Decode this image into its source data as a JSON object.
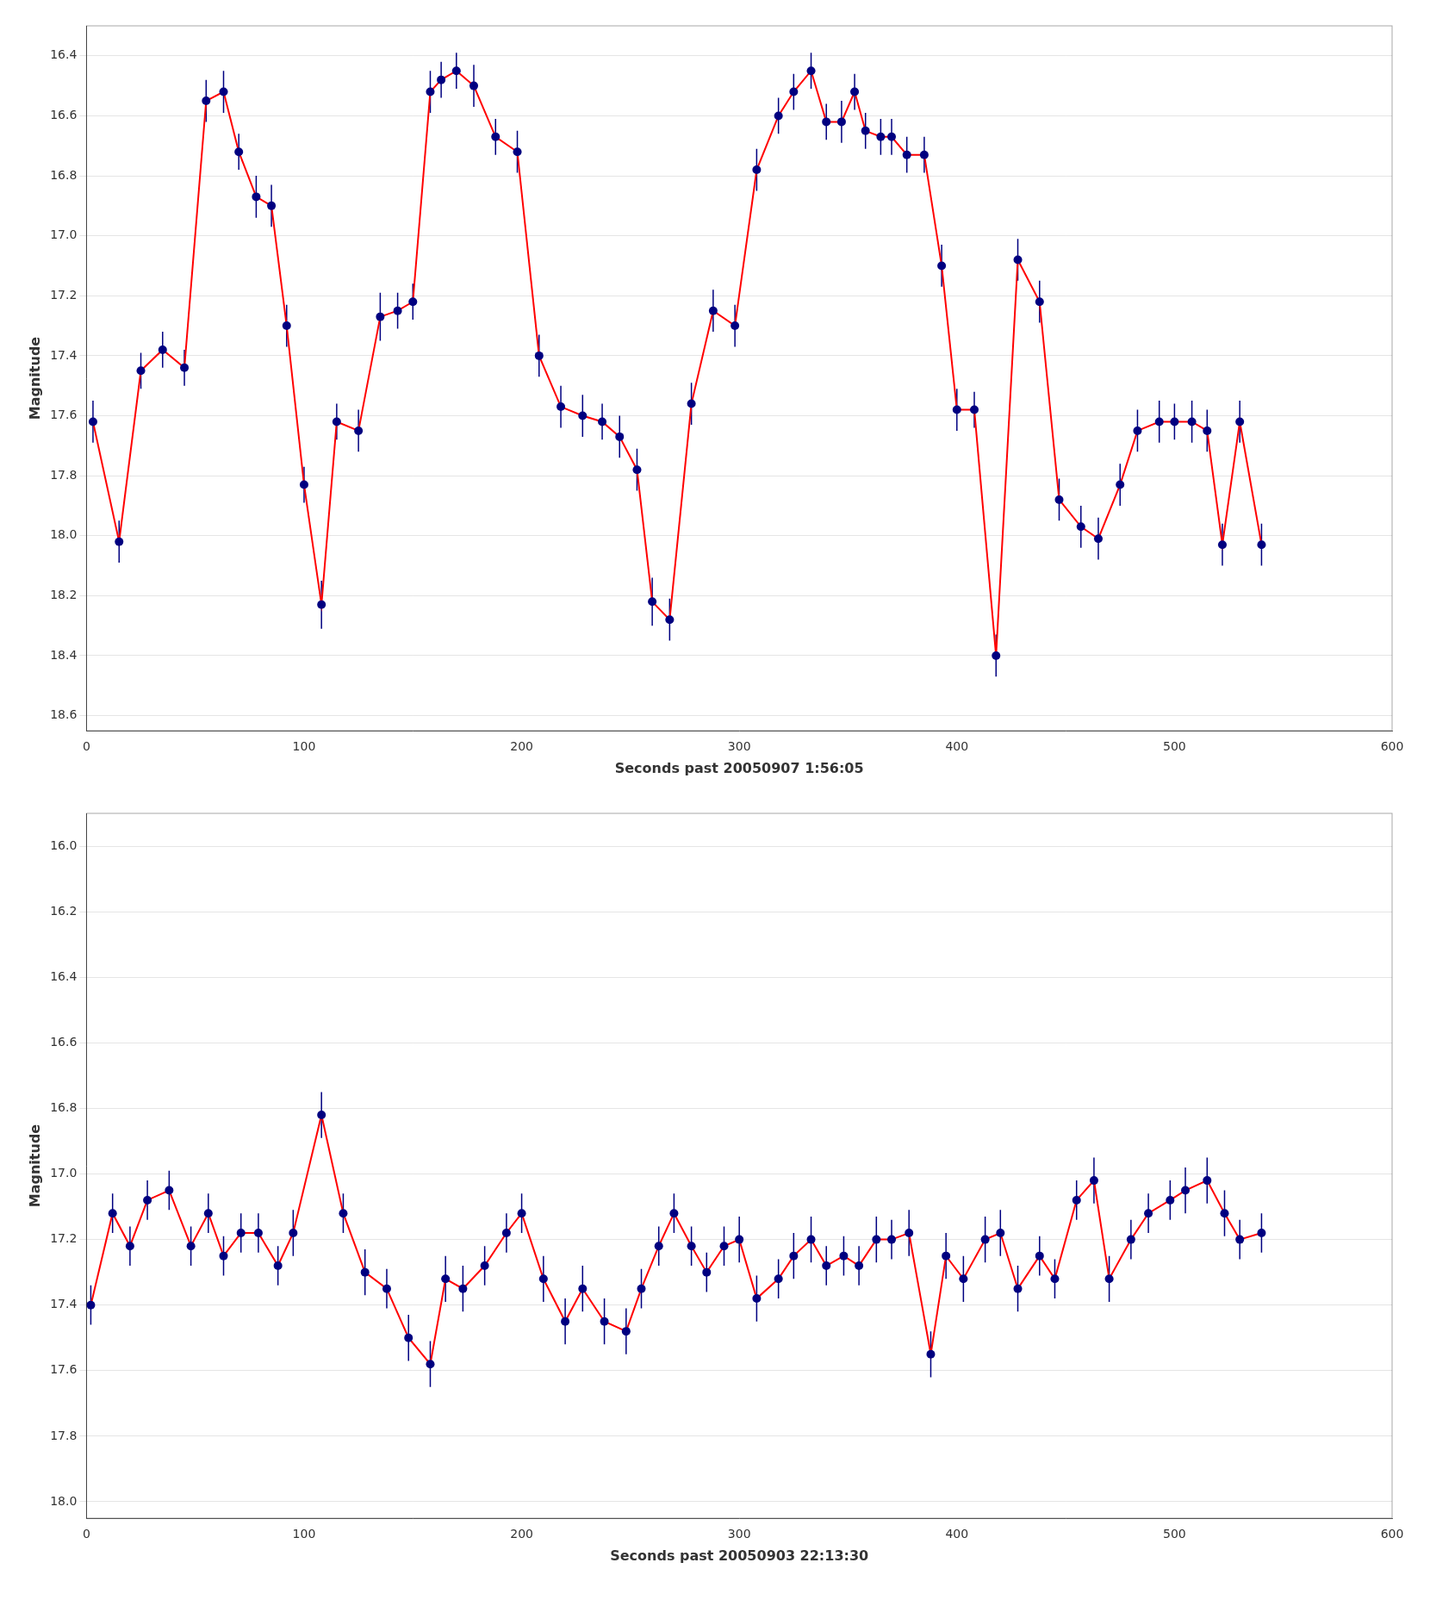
{
  "chart_data": [
    {
      "type": "scatter",
      "xlabel": "Seconds past 20050907 1:56:05",
      "ylabel": "Magnitude",
      "xlim": [
        0,
        600
      ],
      "xticks": [
        0,
        100,
        200,
        300,
        400,
        500,
        600
      ],
      "ylim": [
        18.65,
        16.3
      ],
      "yticks": [
        16.4,
        16.6,
        16.8,
        {
          "value": 17,
          "label": "17.0"
        },
        17.2,
        17.4,
        17.6,
        17.8,
        {
          "value": 18,
          "label": "18.0"
        },
        18.2,
        18.4,
        18.6
      ],
      "grid": "y",
      "x": [
        3,
        15,
        25,
        35,
        45,
        55,
        63,
        70,
        78,
        85,
        92,
        100,
        108,
        115,
        125,
        135,
        143,
        150,
        158,
        163,
        170,
        178,
        188,
        198,
        208,
        218,
        228,
        237,
        245,
        253,
        260,
        268,
        278,
        288,
        298,
        308,
        318,
        325,
        333,
        340,
        347,
        353,
        358,
        365,
        370,
        377,
        385,
        393,
        400,
        408,
        418,
        428,
        438,
        447,
        457,
        465,
        475,
        483,
        493,
        500,
        508,
        515,
        522,
        530,
        540
      ],
      "series": [
        {
          "type": "line",
          "color": "#FF0000",
          "marker": "none",
          "values": [
            17.62,
            18.02,
            17.45,
            17.38,
            17.44,
            16.55,
            16.52,
            16.72,
            16.87,
            16.9,
            17.3,
            17.83,
            18.23,
            17.62,
            17.65,
            17.27,
            17.25,
            17.22,
            16.52,
            16.48,
            16.45,
            16.5,
            16.67,
            16.72,
            17.4,
            17.57,
            17.6,
            17.62,
            17.67,
            17.78,
            18.22,
            18.28,
            17.56,
            17.25,
            17.3,
            16.78,
            16.6,
            16.52,
            16.45,
            16.62,
            16.62,
            16.52,
            16.65,
            16.67,
            16.67,
            16.73,
            16.73,
            17.1,
            17.58,
            17.58,
            18.4,
            17.08,
            17.22,
            17.88,
            17.97,
            18.01,
            17.83,
            17.65,
            17.62,
            17.62,
            17.62,
            17.65,
            18.03,
            17.62,
            18.03
          ]
        },
        {
          "type": "scatter",
          "color": "#000080",
          "marker": "circle",
          "values": [
            17.62,
            18.02,
            17.45,
            17.38,
            17.44,
            16.55,
            16.52,
            16.72,
            16.87,
            16.9,
            17.3,
            17.83,
            18.23,
            17.62,
            17.65,
            17.27,
            17.25,
            17.22,
            16.52,
            16.48,
            16.45,
            16.5,
            16.67,
            16.72,
            17.4,
            17.57,
            17.6,
            17.62,
            17.67,
            17.78,
            18.22,
            18.28,
            17.56,
            17.25,
            17.3,
            16.78,
            16.6,
            16.52,
            16.45,
            16.62,
            16.62,
            16.52,
            16.65,
            16.67,
            16.67,
            16.73,
            16.73,
            17.1,
            17.58,
            17.58,
            18.4,
            17.08,
            17.22,
            17.88,
            17.97,
            18.01,
            17.83,
            17.65,
            17.62,
            17.62,
            17.62,
            17.65,
            18.03,
            17.62,
            18.03
          ],
          "yerr": [
            0.07,
            0.07,
            0.06,
            0.06,
            0.06,
            0.07,
            0.07,
            0.06,
            0.07,
            0.07,
            0.07,
            0.06,
            0.08,
            0.06,
            0.07,
            0.08,
            0.06,
            0.06,
            0.07,
            0.06,
            0.06,
            0.07,
            0.06,
            0.07,
            0.07,
            0.07,
            0.07,
            0.06,
            0.07,
            0.07,
            0.08,
            0.07,
            0.07,
            0.07,
            0.07,
            0.07,
            0.06,
            0.06,
            0.06,
            0.06,
            0.07,
            0.06,
            0.06,
            0.06,
            0.06,
            0.06,
            0.06,
            0.07,
            0.07,
            0.06,
            0.07,
            0.07,
            0.07,
            0.07,
            0.07,
            0.07,
            0.07,
            0.07,
            0.07,
            0.06,
            0.07,
            0.07,
            0.07,
            0.07,
            0.07
          ]
        }
      ]
    },
    {
      "type": "scatter",
      "xlabel": "Seconds past 20050903 22:13:30",
      "ylabel": "Magnitude",
      "xlim": [
        0,
        600
      ],
      "xticks": [
        0,
        100,
        200,
        300,
        400,
        500,
        600
      ],
      "ylim": [
        18.05,
        15.9
      ],
      "yticks": [
        {
          "value": 16,
          "label": "16.0"
        },
        16.2,
        16.4,
        16.6,
        16.8,
        {
          "value": 17,
          "label": "17.0"
        },
        17.2,
        17.4,
        17.6,
        17.8,
        {
          "value": 18,
          "label": "18.0"
        }
      ],
      "grid": "y",
      "x": [
        2,
        12,
        20,
        28,
        38,
        48,
        56,
        63,
        71,
        79,
        88,
        95,
        108,
        118,
        128,
        138,
        148,
        158,
        165,
        173,
        183,
        193,
        200,
        210,
        220,
        228,
        238,
        248,
        255,
        263,
        270,
        278,
        285,
        293,
        300,
        308,
        318,
        325,
        333,
        340,
        348,
        355,
        363,
        370,
        378,
        388,
        395,
        403,
        413,
        420,
        428,
        438,
        445,
        455,
        463,
        470,
        480,
        488,
        498,
        505,
        515,
        523,
        530,
        540
      ],
      "series": [
        {
          "type": "line",
          "color": "#FF0000",
          "marker": "none",
          "values": [
            17.4,
            17.12,
            17.22,
            17.08,
            17.05,
            17.22,
            17.12,
            17.25,
            17.18,
            17.18,
            17.28,
            17.18,
            16.82,
            17.12,
            17.3,
            17.35,
            17.5,
            17.58,
            17.32,
            17.35,
            17.28,
            17.18,
            17.12,
            17.32,
            17.45,
            17.35,
            17.45,
            17.48,
            17.35,
            17.22,
            17.12,
            17.22,
            17.3,
            17.22,
            17.2,
            17.38,
            17.32,
            17.25,
            17.2,
            17.28,
            17.25,
            17.28,
            17.2,
            17.2,
            17.18,
            17.55,
            17.25,
            17.32,
            17.2,
            17.18,
            17.35,
            17.25,
            17.32,
            17.08,
            17.02,
            17.32,
            17.2,
            17.12,
            17.08,
            17.05,
            17.02,
            17.12,
            17.2,
            17.18
          ]
        },
        {
          "type": "scatter",
          "color": "#000080",
          "marker": "circle",
          "values": [
            17.4,
            17.12,
            17.22,
            17.08,
            17.05,
            17.22,
            17.12,
            17.25,
            17.18,
            17.18,
            17.28,
            17.18,
            16.82,
            17.12,
            17.3,
            17.35,
            17.5,
            17.58,
            17.32,
            17.35,
            17.28,
            17.18,
            17.12,
            17.32,
            17.45,
            17.35,
            17.45,
            17.48,
            17.35,
            17.22,
            17.12,
            17.22,
            17.3,
            17.22,
            17.2,
            17.38,
            17.32,
            17.25,
            17.2,
            17.28,
            17.25,
            17.28,
            17.2,
            17.2,
            17.18,
            17.55,
            17.25,
            17.32,
            17.2,
            17.18,
            17.35,
            17.25,
            17.32,
            17.08,
            17.02,
            17.32,
            17.2,
            17.12,
            17.08,
            17.05,
            17.02,
            17.12,
            17.2,
            17.18
          ],
          "yerr": [
            0.06,
            0.06,
            0.06,
            0.06,
            0.06,
            0.06,
            0.06,
            0.06,
            0.06,
            0.06,
            0.06,
            0.07,
            0.07,
            0.06,
            0.07,
            0.06,
            0.07,
            0.07,
            0.07,
            0.07,
            0.06,
            0.06,
            0.06,
            0.07,
            0.07,
            0.07,
            0.07,
            0.07,
            0.06,
            0.06,
            0.06,
            0.06,
            0.06,
            0.06,
            0.07,
            0.07,
            0.06,
            0.07,
            0.07,
            0.06,
            0.06,
            0.06,
            0.07,
            0.06,
            0.07,
            0.07,
            0.07,
            0.07,
            0.07,
            0.07,
            0.07,
            0.06,
            0.06,
            0.06,
            0.07,
            0.07,
            0.06,
            0.06,
            0.06,
            0.07,
            0.07,
            0.07,
            0.06,
            0.06
          ]
        }
      ]
    }
  ]
}
